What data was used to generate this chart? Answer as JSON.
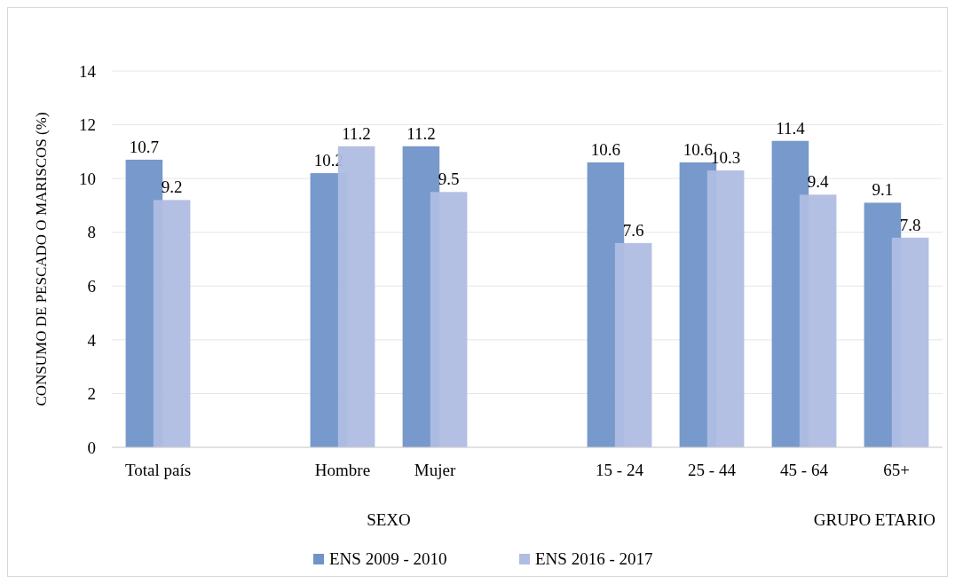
{
  "chart_data": {
    "type": "bar",
    "ylabel": "CONSUMO DE PESCADO O MARISCOS (%)",
    "categories": [
      "Total país",
      null,
      "Hombre",
      "Mujer",
      null,
      "15 - 24",
      "25 - 44",
      "45 - 64",
      "65+"
    ],
    "series": [
      {
        "name": "ENS 2009 - 2010",
        "color": "#7094c8",
        "values": [
          10.7,
          null,
          10.2,
          11.2,
          null,
          10.6,
          10.6,
          11.4,
          9.1
        ]
      },
      {
        "name": "ENS 2016 - 2017",
        "color": "#afbde2",
        "values": [
          9.2,
          null,
          11.2,
          9.5,
          null,
          7.6,
          10.3,
          9.4,
          7.8
        ]
      }
    ],
    "ylim": [
      0,
      14
    ],
    "yticks": [
      0,
      2,
      4,
      6,
      8,
      10,
      12,
      14
    ],
    "grid": "y",
    "legend": "bottom",
    "data_labels": true,
    "annotations": [
      "SEXO",
      "GRUPO ETARIO"
    ]
  }
}
